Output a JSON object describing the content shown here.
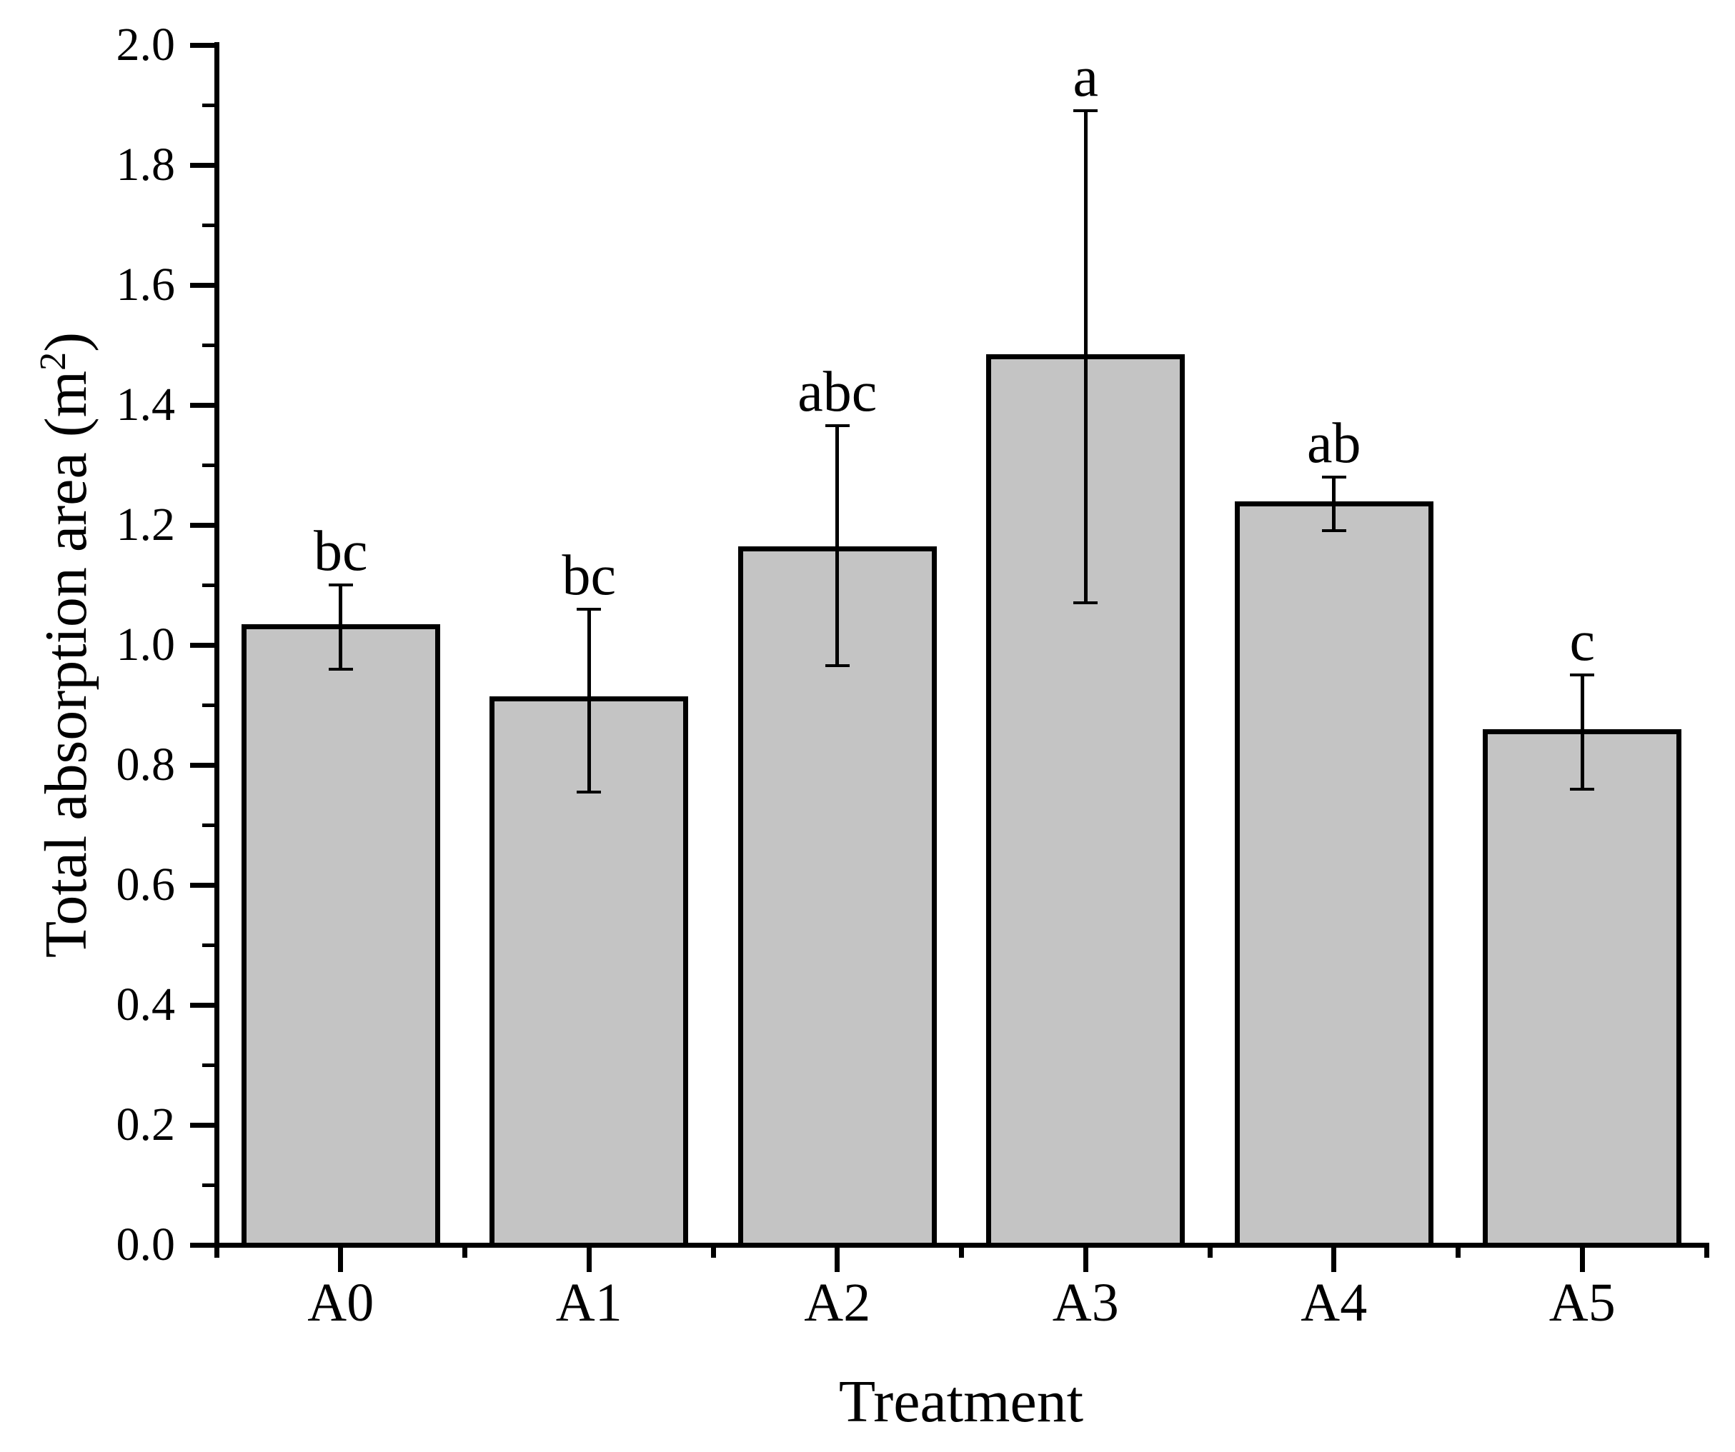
{
  "chart_data": {
    "type": "bar",
    "title": "",
    "categories": [
      "A0",
      "A1",
      "A2",
      "A3",
      "A4",
      "A5"
    ],
    "values": [
      1.03,
      0.91,
      1.16,
      1.48,
      1.235,
      0.855
    ],
    "error_upper": [
      1.1,
      1.06,
      1.365,
      1.89,
      1.28,
      0.95
    ],
    "error_lower": [
      0.96,
      0.755,
      0.965,
      1.07,
      1.19,
      0.76
    ],
    "sig_letters": [
      "bc",
      "bc",
      "abc",
      "a",
      "ab",
      "c"
    ],
    "xlabel": "Treatment",
    "ylabel": "Total absorption area (m²)",
    "ylabel_parts": {
      "prefix": "Total absorption area (m",
      "sup": "2",
      "suffix": ")"
    },
    "ylim": [
      0.0,
      2.0
    ],
    "ytick_step": 0.2,
    "yminor_step": 0.1,
    "ytick_labels": [
      "0.0",
      "0.2",
      "0.4",
      "0.6",
      "0.8",
      "1.0",
      "1.2",
      "1.4",
      "1.6",
      "1.8",
      "2.0"
    ],
    "grid": false,
    "legend": null,
    "colors": {
      "bar_fill": "#c4c4c4",
      "bar_edge": "#000000",
      "axis": "#000000",
      "text": "#000000",
      "background": "#ffffff"
    }
  }
}
